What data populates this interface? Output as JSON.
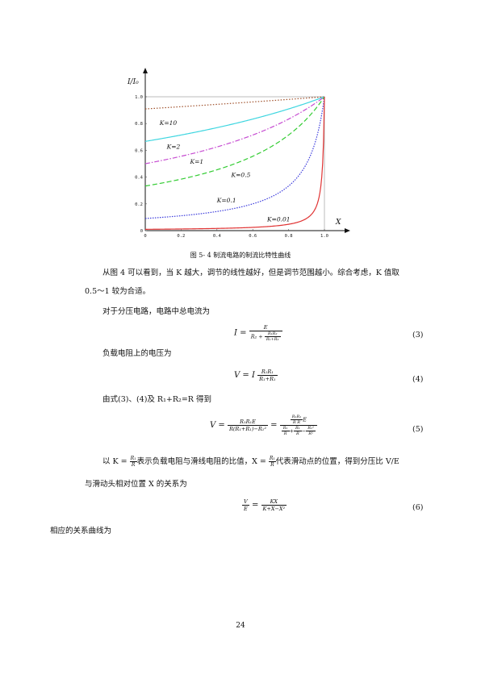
{
  "chart_data": {
    "type": "line",
    "ylabel": "I/I₀",
    "xlabel": "X",
    "xlim": [
      0,
      1.0
    ],
    "ylim": [
      0,
      1.0
    ],
    "x_ticks": [
      "0",
      "0.2",
      "0.4",
      "0.6",
      "0.8",
      "1.0"
    ],
    "y_ticks": [
      "0",
      "0.2",
      "0.4",
      "0.6",
      "0.8",
      "1.0"
    ],
    "series": [
      {
        "name": "K=10",
        "color": "#a0522d",
        "dash": "1.5,2",
        "K": 10
      },
      {
        "name": "K=2",
        "color": "#3fd6e0",
        "dash": "",
        "K": 2
      },
      {
        "name": "K=1",
        "color": "#c64bd1",
        "dash": "6,2,1.5,2",
        "K": 1
      },
      {
        "name": "K=0.5",
        "color": "#33cc33",
        "dash": "6,3",
        "K": 0.5
      },
      {
        "name": "K=0.1",
        "color": "#3b3bdc",
        "dash": "1.5,1.5",
        "K": 0.1
      },
      {
        "name": "K=0.01",
        "color": "#e03333",
        "dash": "",
        "K": 0.01
      }
    ]
  },
  "caption": "图 5- 4  制流电路的制流比特性曲线",
  "para1_line1": "从图 4 可以看到，当 K 越大，调节的线性越好，但是调节范围越小。综合考虑，K 值取",
  "para1_line2": "0.5～1 较为合适。",
  "para2": "对于分压电路，电路中总电流为",
  "eq3_num": "(3)",
  "para3": "负载电阻上的电压为",
  "eq4_num": "(4)",
  "para4": "由式(3)、(4)及 R₁+R₂=R 得到",
  "eq5_num": "(5)",
  "para5_a": "以 K =",
  "para5_b": "表示负载电阻与滑线电阻的比值，X =",
  "para5_c": "代表滑动点的位置，得到分压比 V/E",
  "para6": "与滑动头相对位置 X 的关系为",
  "eq6_num": "(6)",
  "para7": "相应的关系曲线为",
  "page_number": "24"
}
